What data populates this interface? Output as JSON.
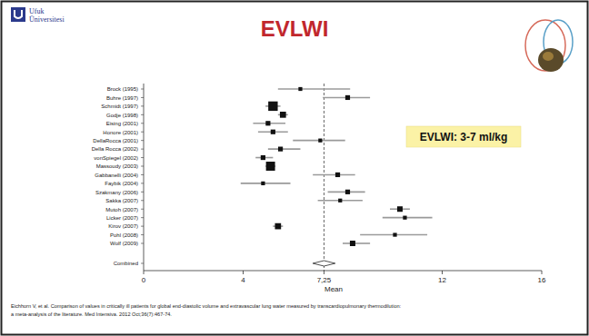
{
  "header": {
    "logo_lines": [
      "Ufuk",
      "Üniversitesi"
    ]
  },
  "chart_data": {
    "type": "forest",
    "title": "EVLWI",
    "xlabel": "Mean",
    "categories": [
      "Brock (1995)",
      "Buhre (1997)",
      "Schmidt (1997)",
      "Godje (1998)",
      "Eising (2001)",
      "Honore (2001)",
      "DellaRocca (2001)",
      "Della Rocca (2002)",
      "vonSpiegel (2002)",
      "Massoudy (2003)",
      "Gabbanelli (2004)",
      "Faybik (2004)",
      "Szakmany (2006)",
      "Sakka (2007)",
      "Mutoh (2007)",
      "Licker (2007)",
      "Kirov (2007)",
      "Pohl (2008)",
      "Wolf (2009)"
    ],
    "values": [
      6.3,
      8.2,
      5.2,
      5.6,
      5.0,
      5.2,
      7.1,
      5.5,
      4.8,
      5.1,
      7.8,
      4.8,
      8.2,
      7.9,
      10.3,
      10.5,
      5.4,
      10.1,
      8.4
    ],
    "ci_lower": [
      5.4,
      7.2,
      4.9,
      5.4,
      4.4,
      4.6,
      6.0,
      5.0,
      4.5,
      4.9,
      6.8,
      3.9,
      7.4,
      7.0,
      9.9,
      9.6,
      5.2,
      8.7,
      8.0
    ],
    "ci_upper": [
      8.3,
      9.1,
      5.5,
      5.8,
      5.7,
      5.8,
      8.1,
      6.3,
      5.2,
      5.3,
      8.5,
      5.9,
      8.9,
      8.8,
      10.7,
      11.6,
      5.6,
      11.4,
      9.1
    ],
    "weights": [
      2,
      3,
      12,
      5,
      3,
      3,
      2,
      3,
      3,
      11,
      3,
      2,
      3,
      2,
      4,
      2,
      5,
      2,
      4
    ],
    "combined": {
      "label": "Combined",
      "value": 7.25,
      "ci_lower": 6.8,
      "ci_upper": 7.7
    },
    "xlim": [
      0,
      16
    ],
    "xticks": [
      0,
      4,
      {
        "value": 7.25,
        "label": "7,25"
      },
      12,
      16
    ],
    "annotations": [
      "EVLWI: 3-7 ml/kg"
    ]
  },
  "footer": {
    "citation_lines": [
      "Eichhorn V, et al. Comparison of values in critically ill patients for global end-diastolic volume and extravascular lung water measured by transcardiopulmonary thermodilution:",
      "a meta-analysis of the literature. Med Intensiva. 2012 Oct;36(7):467-74."
    ]
  }
}
